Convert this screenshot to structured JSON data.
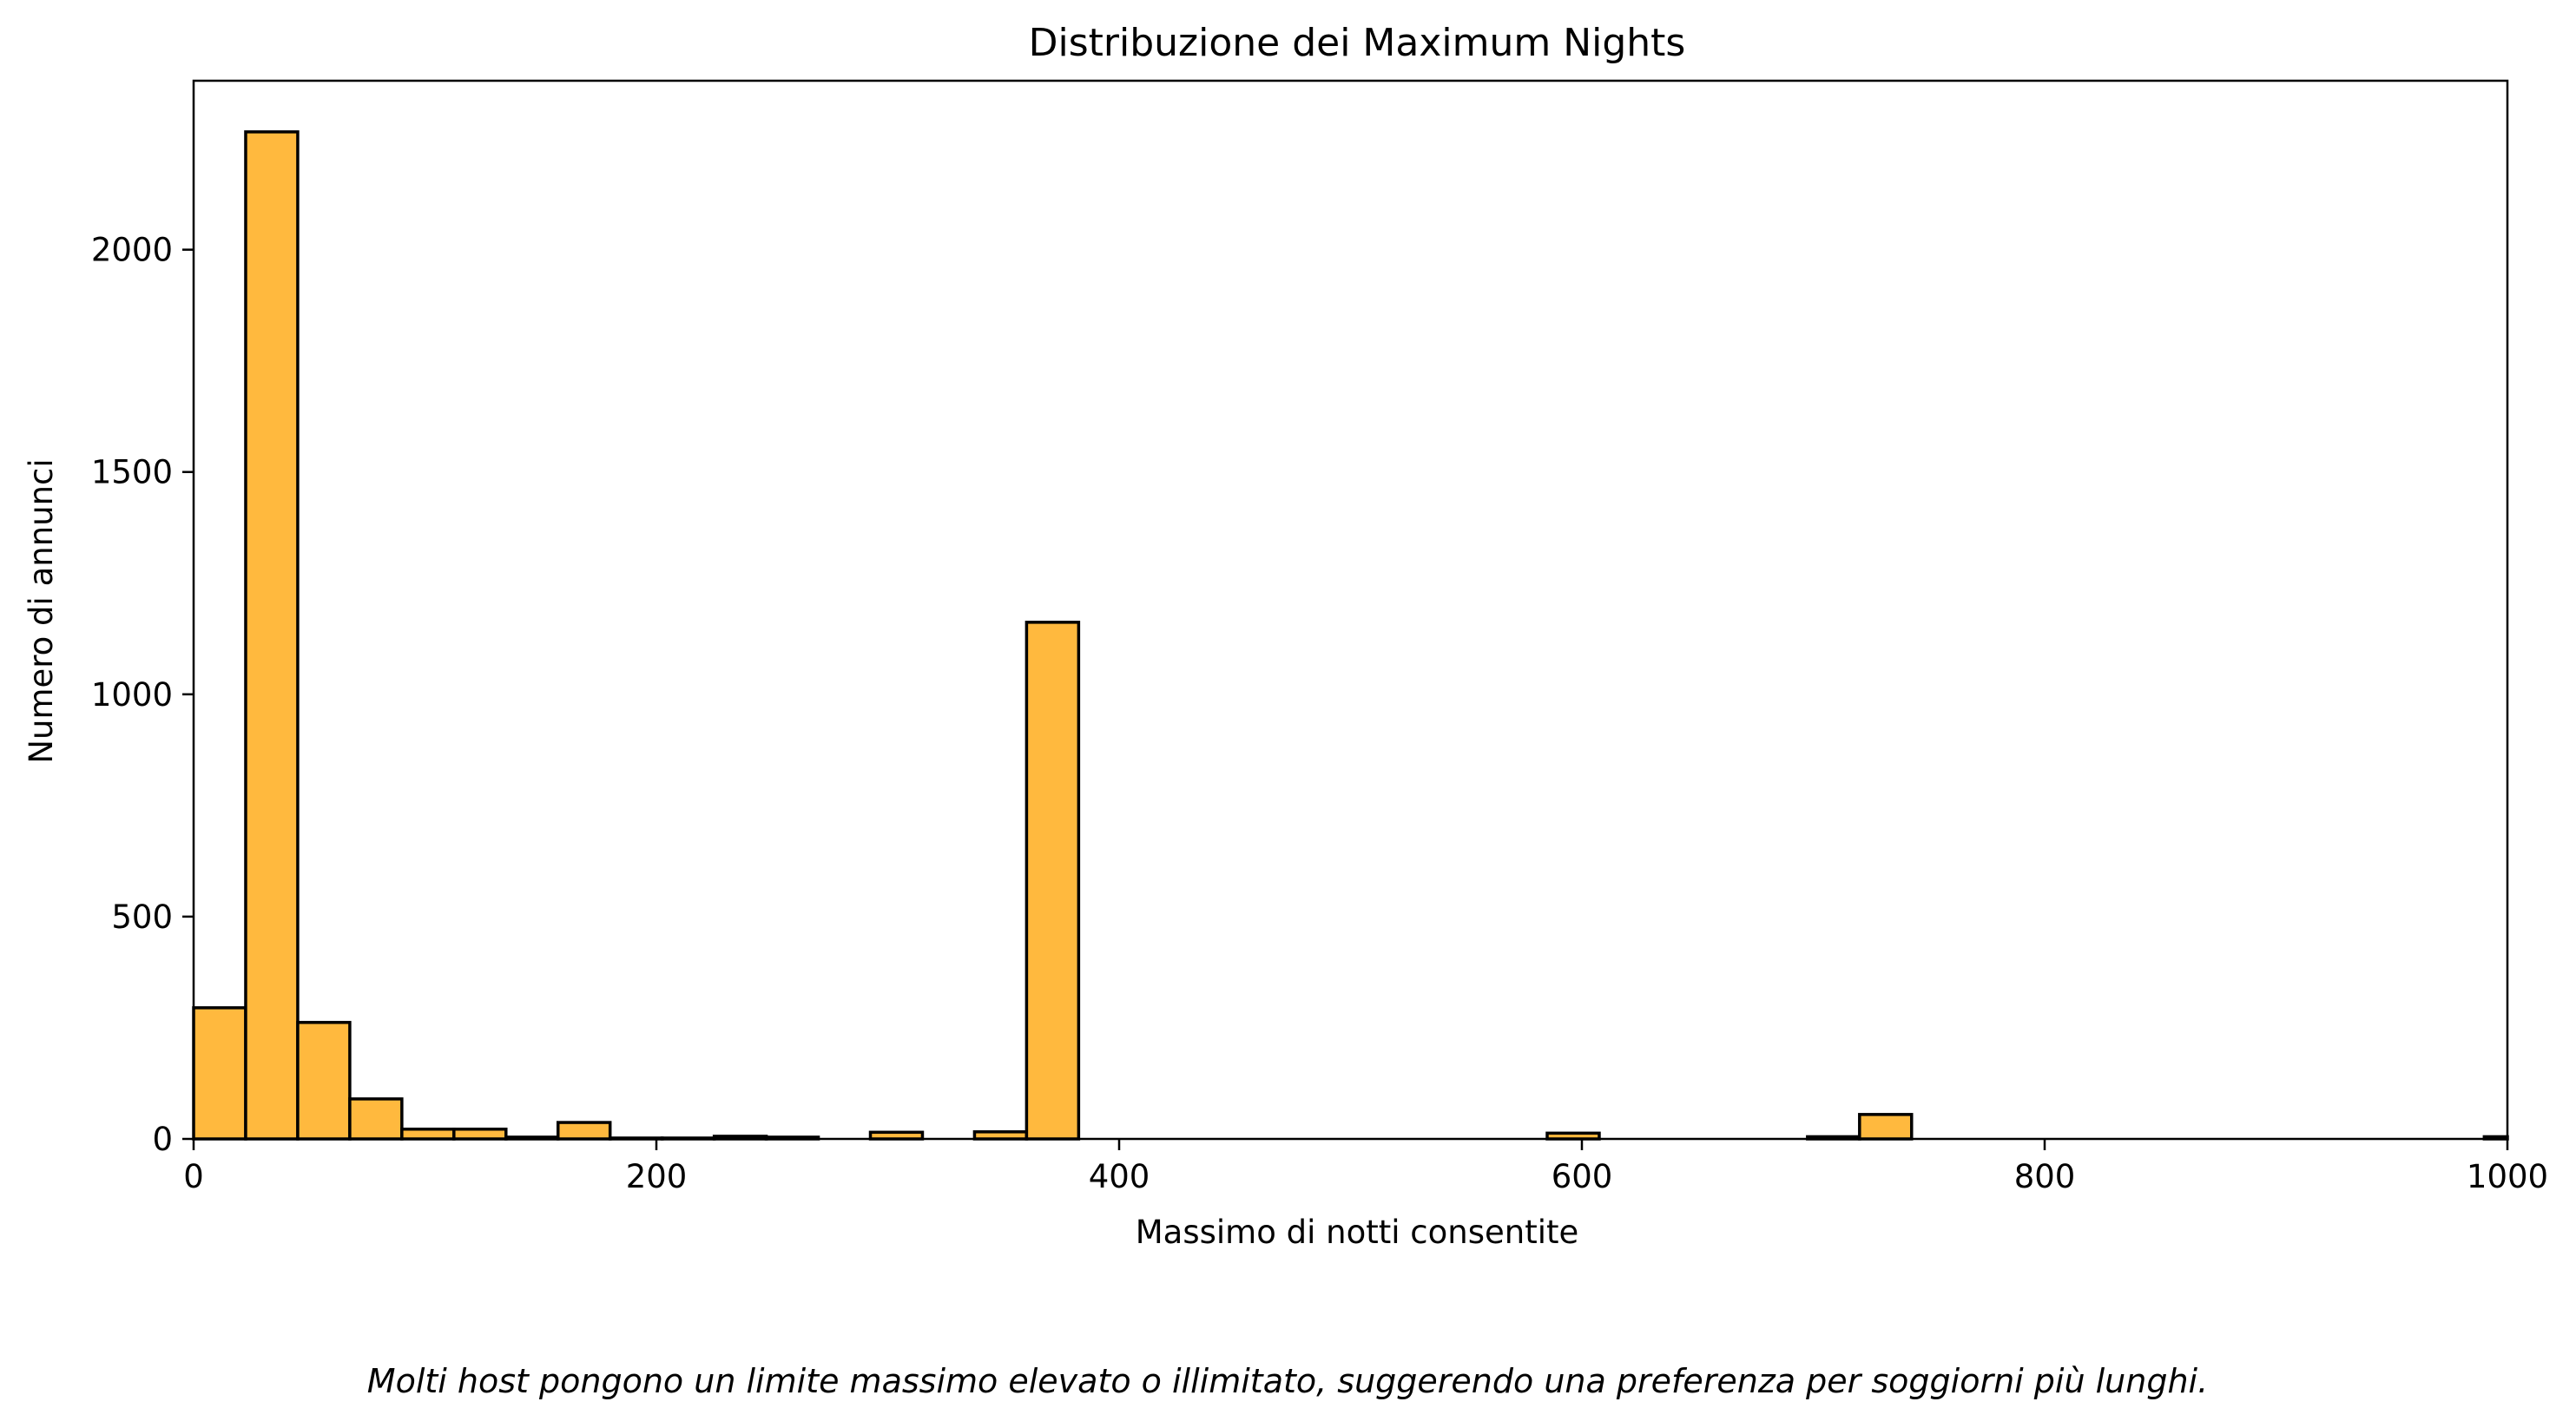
{
  "chart_data": {
    "type": "bar",
    "title": "Distribuzione dei Maximum Nights",
    "xlabel": "Massimo di notti consentite",
    "ylabel": "Numero di annunci",
    "xlim": [
      0,
      1000
    ],
    "ylim": [
      0,
      2380
    ],
    "grid": false,
    "bar_color": "#FFB93E",
    "edge_color": "#000000",
    "bin_width": 22.5,
    "x_ticks": [
      0,
      200,
      400,
      600,
      800,
      1000
    ],
    "y_ticks": [
      0,
      500,
      1000,
      1500,
      2000
    ],
    "x_tick_labels": [
      "0",
      "200",
      "400",
      "600",
      "800",
      "1000"
    ],
    "y_tick_labels": [
      "0",
      "500",
      "1000",
      "1500",
      "2000"
    ],
    "bins": [
      {
        "x": 0,
        "value": 295
      },
      {
        "x": 22.5,
        "value": 2265
      },
      {
        "x": 45,
        "value": 262
      },
      {
        "x": 67.5,
        "value": 90
      },
      {
        "x": 90,
        "value": 22
      },
      {
        "x": 112.5,
        "value": 22
      },
      {
        "x": 135,
        "value": 4
      },
      {
        "x": 157.5,
        "value": 37
      },
      {
        "x": 180,
        "value": 2
      },
      {
        "x": 202.5,
        "value": 2
      },
      {
        "x": 225,
        "value": 6
      },
      {
        "x": 247.5,
        "value": 4
      },
      {
        "x": 292.5,
        "value": 15
      },
      {
        "x": 337.5,
        "value": 16
      },
      {
        "x": 360,
        "value": 1162
      },
      {
        "x": 585,
        "value": 13
      },
      {
        "x": 697.5,
        "value": 5
      },
      {
        "x": 720,
        "value": 55
      },
      {
        "x": 990,
        "value": 5
      }
    ],
    "caption": "Molti host pongono un limite massimo elevato o illimitato, suggerendo una preferenza per soggiorni più lunghi."
  }
}
